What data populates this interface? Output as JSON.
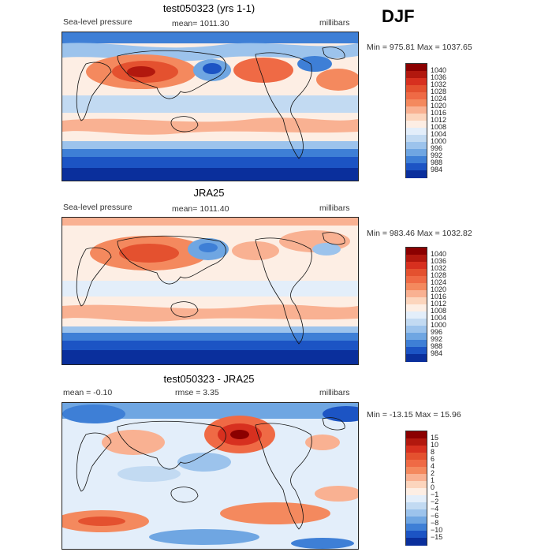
{
  "season": "DJF",
  "panels": [
    {
      "title": "test050323 (yrs 1-1)",
      "left_label": "Sea-level pressure",
      "center_label": "mean= 1011.30",
      "right_label": "millibars",
      "minmax": "Min = 975.81 Max = 1037.65",
      "colorbar": {
        "labels": [
          "1040",
          "1036",
          "1032",
          "1028",
          "1024",
          "1020",
          "1016",
          "1012",
          "1008",
          "1004",
          "1000",
          "996",
          "992",
          "988",
          "984"
        ],
        "colors": [
          "#8b0000",
          "#b2180e",
          "#d7301f",
          "#e4512f",
          "#ef6a45",
          "#f4895e",
          "#f9b192",
          "#fcd5bd",
          "#fdeee4",
          "#e3eefa",
          "#c2daf2",
          "#9cc3ec",
          "#6fa6e2",
          "#3e7fd6",
          "#1c54c4",
          "#0a2f9c"
        ]
      }
    },
    {
      "title": "JRA25",
      "left_label": "Sea-level pressure",
      "center_label": "mean= 1011.40",
      "right_label": "millibars",
      "minmax": "Min = 983.46 Max = 1032.82",
      "colorbar": {
        "labels": [
          "1040",
          "1036",
          "1032",
          "1028",
          "1024",
          "1020",
          "1016",
          "1012",
          "1008",
          "1004",
          "1000",
          "996",
          "992",
          "988",
          "984"
        ],
        "colors": [
          "#8b0000",
          "#b2180e",
          "#d7301f",
          "#e4512f",
          "#ef6a45",
          "#f4895e",
          "#f9b192",
          "#fcd5bd",
          "#fdeee4",
          "#e3eefa",
          "#c2daf2",
          "#9cc3ec",
          "#6fa6e2",
          "#3e7fd6",
          "#1c54c4",
          "#0a2f9c"
        ]
      }
    },
    {
      "title": "test050323 - JRA25",
      "left_label": "mean =   -0.10",
      "center_label": "rmse =    3.35",
      "right_label": "millibars",
      "minmax": "Min = -13.15 Max =  15.96",
      "colorbar": {
        "labels": [
          "15",
          "10",
          "8",
          "6",
          "4",
          "2",
          "1",
          "0",
          "−1",
          "−2",
          "−4",
          "−6",
          "−8",
          "−10",
          "−15"
        ],
        "colors": [
          "#8b0000",
          "#b2180e",
          "#d7301f",
          "#e4512f",
          "#ef6a45",
          "#f4895e",
          "#f9b192",
          "#fcd5bd",
          "#fdeee4",
          "#e3eefa",
          "#c2daf2",
          "#9cc3ec",
          "#6fa6e2",
          "#3e7fd6",
          "#1c54c4",
          "#0a2f9c"
        ]
      }
    }
  ],
  "chart_data": [
    {
      "type": "heatmap",
      "title": "test050323 (yrs 1-1)",
      "variable": "Sea-level pressure",
      "units": "millibars",
      "mean": 1011.3,
      "min": 975.81,
      "max": 1037.65,
      "contour_levels": [
        984,
        988,
        992,
        996,
        1000,
        1004,
        1008,
        1012,
        1016,
        1020,
        1024,
        1028,
        1032,
        1036,
        1040
      ]
    },
    {
      "type": "heatmap",
      "title": "JRA25",
      "variable": "Sea-level pressure",
      "units": "millibars",
      "mean": 1011.4,
      "min": 983.46,
      "max": 1032.82,
      "contour_levels": [
        984,
        988,
        992,
        996,
        1000,
        1004,
        1008,
        1012,
        1016,
        1020,
        1024,
        1028,
        1032,
        1036,
        1040
      ]
    },
    {
      "type": "heatmap",
      "title": "test050323 - JRA25",
      "units": "millibars",
      "mean": -0.1,
      "rmse": 3.35,
      "min": -13.15,
      "max": 15.96,
      "contour_levels": [
        -15,
        -10,
        -8,
        -6,
        -4,
        -2,
        -1,
        0,
        1,
        2,
        4,
        6,
        8,
        10,
        15
      ]
    }
  ]
}
